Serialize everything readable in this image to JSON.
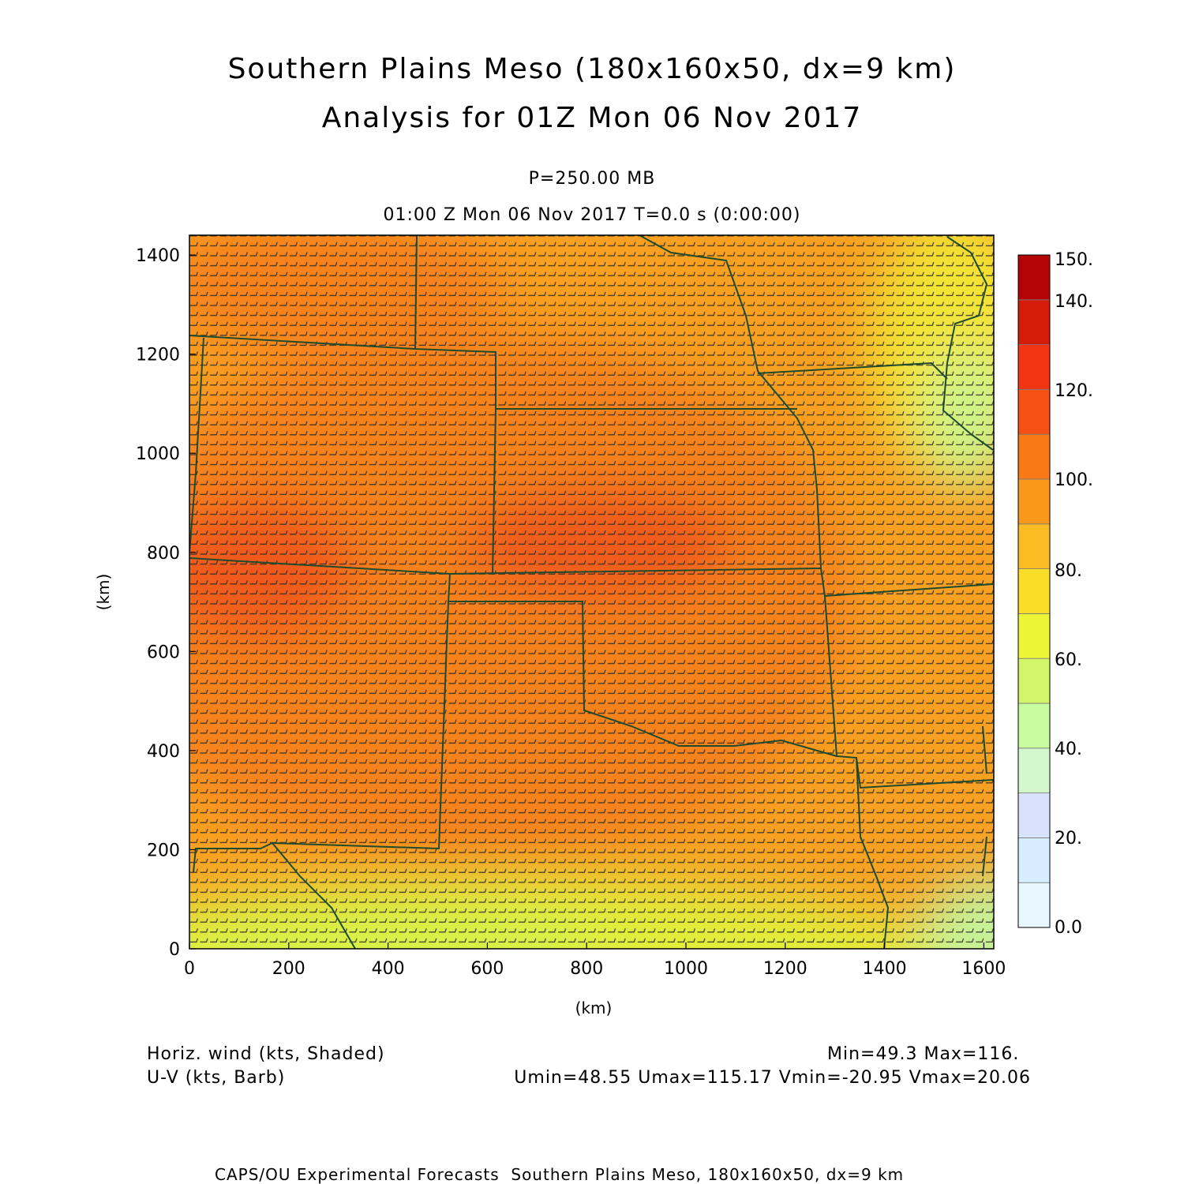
{
  "title_line1": "Southern Plains Meso (180x160x50, dx=9 km)",
  "title_line2": "Analysis for 01Z Mon 06 Nov 2017",
  "pressure_label": "P=250.00 MB",
  "time_label": "01:00 Z Mon 06 Nov 2017    T=0.0 s (0:00:00)",
  "x_axis": {
    "label": "(km)",
    "min": 0,
    "max": 1620,
    "ticks": [
      0,
      200,
      400,
      600,
      800,
      1000,
      1200,
      1400,
      1600
    ]
  },
  "y_axis": {
    "label": "(km)",
    "min": 0,
    "max": 1440,
    "ticks": [
      0,
      200,
      400,
      600,
      800,
      1000,
      1200,
      1400
    ]
  },
  "colorbar": {
    "labels": [
      "150.",
      "140.",
      "120.",
      "100.",
      "80.",
      "60.",
      "40.",
      "20.",
      "0.0"
    ],
    "colors": [
      "#e8f6ff",
      "#d6eeff",
      "#d8e2f8",
      "#d2f7cc",
      "#c8fa9e",
      "#d2f56a",
      "#ecf636",
      "#fbdc26",
      "#fbbb22",
      "#f9981a",
      "#f87a14",
      "#f65014",
      "#f03414",
      "#d41c08",
      "#b40404"
    ]
  },
  "shading": {
    "field": "Horiz. wind (kts, Shaded)",
    "min_label": "Min=49.3",
    "max_label": "Max=116."
  },
  "barbs": {
    "field": "U-V (kts, Barb)",
    "stats": "Umin=48.55 Umax=115.17 Vmin=-20.95 Vmax=20.06"
  },
  "credit": "CAPS/OU Experimental Forecasts  Southern Plains Meso, 180x160x50, dx=9 km"
}
